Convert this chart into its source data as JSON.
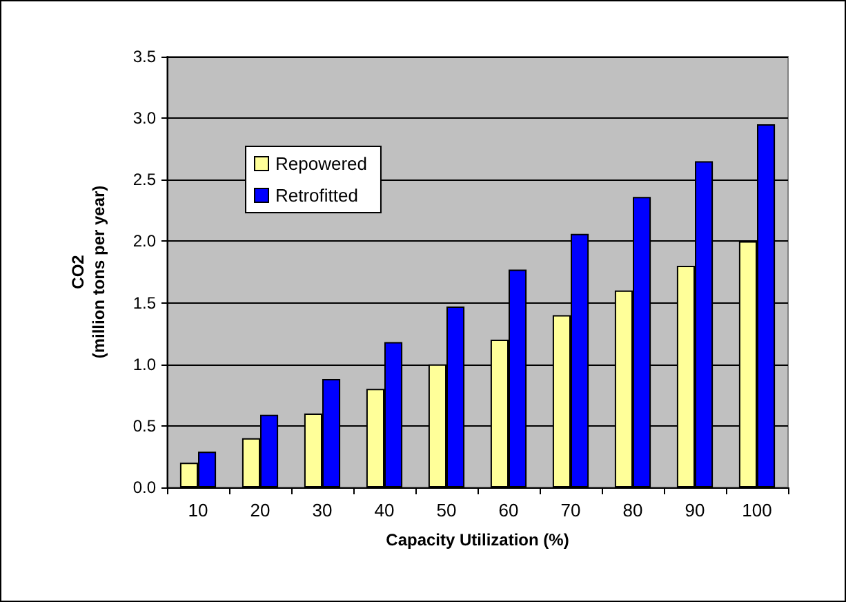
{
  "chart_data": {
    "type": "bar",
    "xlabel": "Capacity Utilization (%)",
    "ylabel": "CO2\n(million tons per year)",
    "categories": [
      "10",
      "20",
      "30",
      "40",
      "50",
      "60",
      "70",
      "80",
      "90",
      "100"
    ],
    "series": [
      {
        "name": "Repowered",
        "color": "#ffff99",
        "values": [
          0.2,
          0.4,
          0.6,
          0.8,
          1.0,
          1.2,
          1.4,
          1.6,
          1.8,
          2.0
        ]
      },
      {
        "name": "Retrofitted",
        "color": "#0000ff",
        "values": [
          0.29,
          0.59,
          0.88,
          1.18,
          1.47,
          1.77,
          2.06,
          2.36,
          2.65,
          2.95
        ]
      }
    ],
    "ylim": [
      0,
      3.5
    ],
    "yticks": [
      {
        "value": 0,
        "label": "0.0"
      },
      {
        "value": 0.5,
        "label": "0.5"
      },
      {
        "value": 1,
        "label": "1.0"
      },
      {
        "value": 1.5,
        "label": "1.5"
      },
      {
        "value": 2,
        "label": "2.0"
      },
      {
        "value": 2.5,
        "label": "2.5"
      },
      {
        "value": 3,
        "label": "3.0"
      },
      {
        "value": 3.5,
        "label": "3.5"
      }
    ],
    "grid": "y",
    "legend": "top left"
  }
}
